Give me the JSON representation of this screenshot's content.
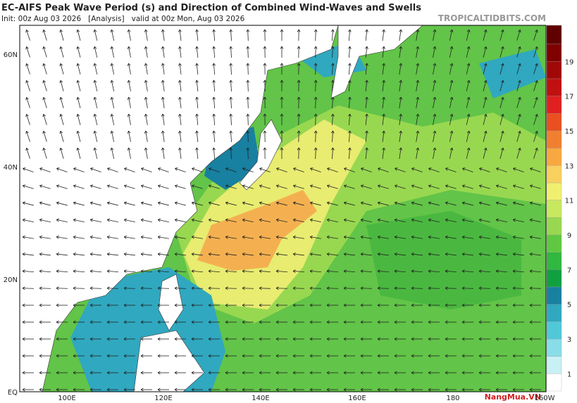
{
  "header": {
    "title": "EC-AIFS Peak Wave Period (s) and Direction of Combined Wind-Waves and Swells",
    "init": "Init: 00z Aug 03 2026   [Analysis]   valid at 00z Mon, Aug 03 2026",
    "site": "TROPICALTIDBITS.COM"
  },
  "map": {
    "lat_labels": [
      "60N",
      "40N",
      "20N",
      "EQ"
    ],
    "lon_labels": [
      "100E",
      "120E",
      "140E",
      "160E",
      "180",
      "160W"
    ]
  },
  "colorbar": {
    "labels": [
      1,
      3,
      5,
      7,
      9,
      11,
      13,
      15,
      17,
      19
    ],
    "colors": [
      "#ffffff",
      "#c8f0f5",
      "#88dde8",
      "#50c8d8",
      "#30a8c0",
      "#1880a0",
      "#10a040",
      "#30b840",
      "#60c840",
      "#98d850",
      "#c8e860",
      "#f0f070",
      "#f8d060",
      "#f8a840",
      "#f08030",
      "#e85020",
      "#e02020",
      "#c01010",
      "#a00808",
      "#800000",
      "#600000"
    ]
  },
  "watermark": "NangMua.VN"
}
